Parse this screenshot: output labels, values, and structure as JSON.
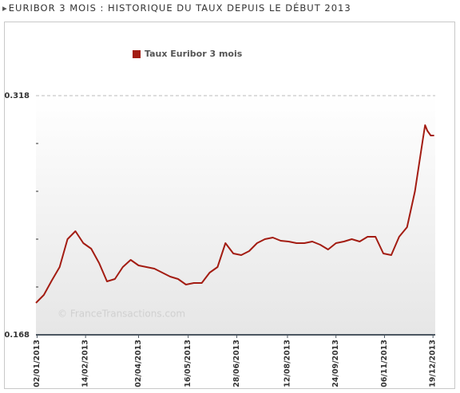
{
  "chart_data": {
    "type": "line",
    "title": "EURIBOR 3 MOIS : HISTORIQUE DU TAUX DEPUIS LE DÉBUT 2013",
    "watermark": "© FranceTransactions.com",
    "x": [
      "2013-01-01",
      "2013-01-08",
      "2013-01-15",
      "2013-01-22",
      "2013-01-29",
      "2013-02-05",
      "2013-02-12",
      "2013-02-19",
      "2013-02-26",
      "2013-03-05",
      "2013-03-12",
      "2013-03-19",
      "2013-03-26",
      "2013-04-02",
      "2013-04-09",
      "2013-04-16",
      "2013-04-23",
      "2013-04-30",
      "2013-05-07",
      "2013-05-14",
      "2013-05-21",
      "2013-05-28",
      "2013-06-04",
      "2013-06-11",
      "2013-06-18",
      "2013-06-25",
      "2013-07-02",
      "2013-07-09",
      "2013-07-16",
      "2013-07-23",
      "2013-07-30",
      "2013-08-06",
      "2013-08-13",
      "2013-08-20",
      "2013-08-27",
      "2013-09-03",
      "2013-09-10",
      "2013-09-17",
      "2013-09-24",
      "2013-10-01",
      "2013-10-08",
      "2013-10-15",
      "2013-10-22",
      "2013-10-29",
      "2013-11-05",
      "2013-11-12",
      "2013-11-19",
      "2013-11-26",
      "2013-12-03",
      "2013-12-10",
      "2013-12-12",
      "2013-12-14",
      "2013-12-17",
      "2013-12-20"
    ],
    "series": [
      {
        "name": "Taux Euribor 3 mois",
        "color": "#a31c12",
        "values": [
          0.188,
          0.193,
          0.202,
          0.2105,
          0.228,
          0.233,
          0.2255,
          0.222,
          0.213,
          0.2015,
          0.203,
          0.2105,
          0.215,
          0.2115,
          0.2105,
          0.2095,
          0.207,
          0.2045,
          0.203,
          0.1995,
          0.2005,
          0.2005,
          0.207,
          0.2105,
          0.2255,
          0.219,
          0.218,
          0.2205,
          0.2255,
          0.228,
          0.229,
          0.227,
          0.2265,
          0.2255,
          0.2255,
          0.2265,
          0.2245,
          0.2215,
          0.2255,
          0.2265,
          0.228,
          0.2265,
          0.2295,
          0.2295,
          0.219,
          0.218,
          0.2295,
          0.2355,
          0.258,
          0.2905,
          0.2995,
          0.296,
          0.293,
          0.293
        ]
      }
    ],
    "xlim": [
      "2013-01-01",
      "2013-12-21"
    ],
    "xticks": [
      {
        "value": "2013-01-02",
        "label": "02/01/2013"
      },
      {
        "value": "2013-02-14",
        "label": "14/02/2013"
      },
      {
        "value": "2013-04-02",
        "label": "02/04/2013"
      },
      {
        "value": "2013-05-16",
        "label": "16/05/2013"
      },
      {
        "value": "2013-06-28",
        "label": "28/06/2013"
      },
      {
        "value": "2013-08-12",
        "label": "12/08/2013"
      },
      {
        "value": "2013-09-24",
        "label": "24/09/2013"
      },
      {
        "value": "2013-11-06",
        "label": "06/11/2013"
      },
      {
        "value": "2013-12-19",
        "label": "19/12/2013"
      }
    ],
    "ylim": [
      0.168,
      0.318
    ],
    "yticks": [
      0.168,
      0.318
    ],
    "minor_yticks": [
      0.198,
      0.228,
      0.258,
      0.288
    ],
    "legend": "top-left"
  }
}
